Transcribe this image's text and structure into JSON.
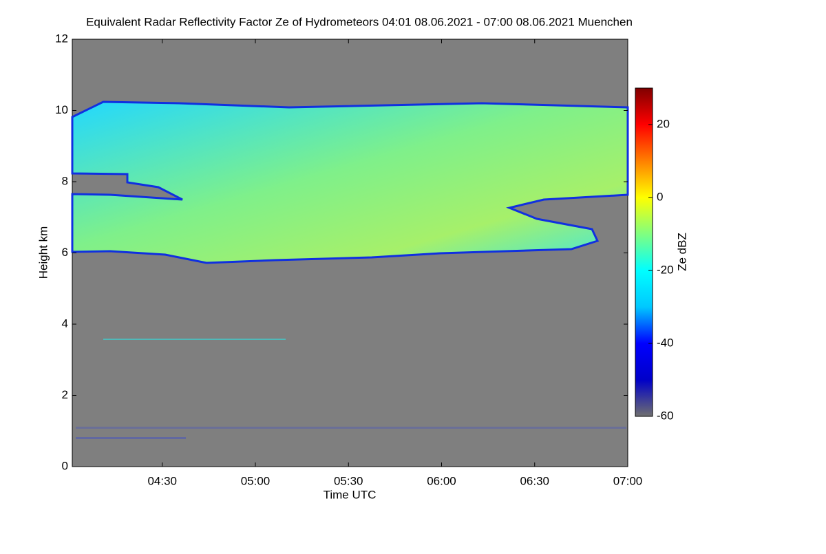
{
  "chart_data": {
    "type": "heatmap",
    "title": "Equivalent Radar Reflectivity Factor Ze of Hydrometeors   04:01 08.06.2021 - 07:00 08.06.2021 Muenchen",
    "xlabel": "Time UTC",
    "ylabel": "Height km",
    "colorbar_label": "Ze dBZ",
    "xlim": [
      "04:01",
      "07:00"
    ],
    "xticks": [
      "04:30",
      "05:00",
      "05:30",
      "06:00",
      "06:30",
      "07:00"
    ],
    "ylim": [
      0,
      12
    ],
    "yticks": [
      0,
      2,
      4,
      6,
      8,
      10,
      12
    ],
    "clim": [
      -60,
      30
    ],
    "cticks": [
      -60,
      -40,
      -20,
      0,
      20
    ],
    "colormap": [
      "#6f6f6f",
      "#0000c8",
      "#0000ff",
      "#00c8ff",
      "#00ffff",
      "#80ff80",
      "#ffff00",
      "#ff8000",
      "#ff0000",
      "#800000"
    ]
  }
}
